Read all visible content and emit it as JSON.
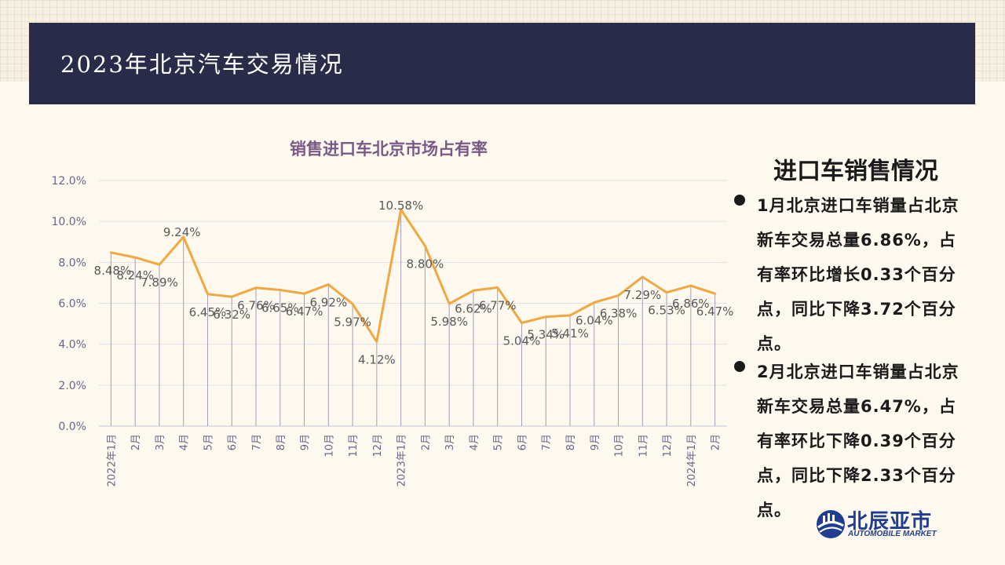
{
  "header": {
    "title": "2023年北京汽车交易情况"
  },
  "side": {
    "title": "进口车销售情况",
    "bullets": [
      "1月北京进口车销量占北京新车交易总量6.86%，占有率环比增长0.33个百分点，同比下降3.72个百分点。",
      "2月北京进口车销量占北京新车交易总量6.47%，占有率环比下降0.39个百分点，同比下降2.33个百分点。"
    ]
  },
  "logo": {
    "name_cn": "北辰亚市",
    "name_en": "AUTOMOBILE MARKET"
  },
  "colors": {
    "header_bg": "#282c48",
    "line": "#f0a840",
    "chart_title": "#7a5a85",
    "axis_text": "#6c6488",
    "drop_line": "#a89bb8",
    "logo": "#1f3e8f"
  },
  "chart_data": {
    "type": "line",
    "title": "销售进口车北京市场占有率",
    "xlabel": "",
    "ylabel": "",
    "ylim": [
      0,
      12
    ],
    "y_ticks": [
      "0.0%",
      "2.0%",
      "4.0%",
      "6.0%",
      "8.0%",
      "10.0%",
      "12.0%"
    ],
    "grid": true,
    "legend": "none",
    "categories": [
      "2022年1月",
      "2月",
      "3月",
      "4月",
      "5月",
      "6月",
      "7月",
      "8月",
      "9月",
      "10月",
      "11月",
      "12月",
      "2023年1月",
      "2月",
      "3月",
      "4月",
      "5月",
      "6月",
      "7月",
      "8月",
      "9月",
      "10月",
      "11月",
      "12月",
      "2024年1月",
      "2月"
    ],
    "values": [
      8.48,
      8.24,
      7.89,
      9.24,
      6.45,
      6.32,
      6.76,
      6.65,
      6.47,
      6.92,
      5.97,
      4.12,
      10.58,
      8.8,
      5.98,
      6.62,
      6.77,
      5.04,
      5.34,
      5.41,
      6.04,
      6.38,
      7.29,
      6.53,
      6.86,
      6.47
    ],
    "data_labels": [
      "8.48%",
      "8.24%",
      "7.89%",
      "9.24%",
      "6.45%",
      "6.32%",
      "6.76%",
      "6.65%",
      "6.47%",
      "6.92%",
      "5.97%",
      "4.12%",
      "10.58%",
      "8.80%",
      "5.98%",
      "6.62%",
      "6.77%",
      "5.04%",
      "5.34%",
      "5.41%",
      "6.04%",
      "6.38%",
      "7.29%",
      "6.53%",
      "6.86%",
      "6.47%"
    ]
  }
}
